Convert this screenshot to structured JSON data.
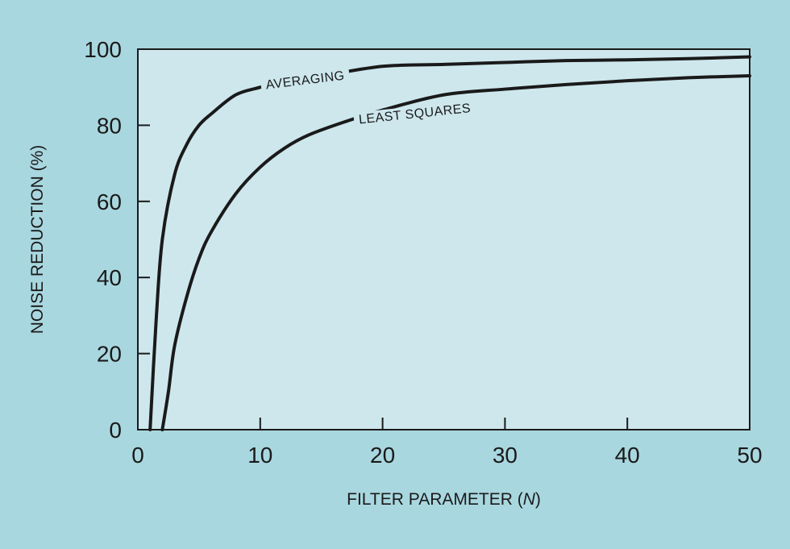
{
  "colors": {
    "background": "#a9d7df",
    "plot_area": "#cde7ed",
    "line": "#1a1a1a"
  },
  "chart_data": {
    "type": "line",
    "xlabel": "FILTER PARAMETER (N)",
    "ylabel": "NOISE REDUCTION (%)",
    "xlim": [
      0,
      50
    ],
    "ylim": [
      0,
      100
    ],
    "xticks": [
      0,
      10,
      20,
      30,
      40,
      50
    ],
    "yticks": [
      0,
      20,
      40,
      60,
      80,
      100
    ],
    "grid": false,
    "legend": "inline labels",
    "series": [
      {
        "name": "AVERAGING",
        "x": [
          1,
          1.5,
          2,
          3,
          4,
          5,
          6,
          8,
          10,
          12,
          15,
          20,
          25,
          30,
          35,
          40,
          45,
          50
        ],
        "y": [
          0,
          29,
          50,
          67,
          75,
          80,
          83,
          88,
          90,
          92,
          93,
          95.5,
          96,
          96.5,
          97,
          97.2,
          97.5,
          98
        ]
      },
      {
        "name": "LEAST SQUARES",
        "x": [
          2,
          2.5,
          3,
          4,
          5,
          6,
          8,
          10,
          12,
          14,
          17,
          20,
          25,
          30,
          35,
          40,
          45,
          50
        ],
        "y": [
          0,
          10,
          22,
          35,
          45,
          52,
          62,
          69,
          74,
          77.5,
          81,
          84,
          88,
          89.5,
          90.7,
          91.7,
          92.5,
          93
        ]
      }
    ]
  }
}
